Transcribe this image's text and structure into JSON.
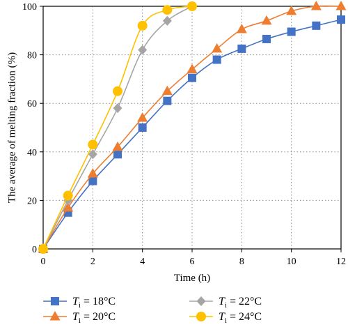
{
  "chart_data": {
    "type": "line",
    "xlabel": "Time (h)",
    "ylabel": "The average of melting fraction (%)",
    "xlim": [
      0,
      12
    ],
    "ylim": [
      0,
      100
    ],
    "xticks": [
      0,
      2,
      4,
      6,
      8,
      10,
      12
    ],
    "yticks": [
      0,
      20,
      40,
      60,
      80,
      100
    ],
    "grid": true,
    "legend_position": "bottom",
    "series": [
      {
        "name": "Ti = 18°C",
        "name_main": "T",
        "name_sub": "i",
        "name_rest": " = 18°C",
        "color": "#4472c4",
        "marker": "square",
        "x": [
          0,
          1,
          2,
          3,
          4,
          5,
          6,
          7,
          8,
          9,
          10,
          11,
          12
        ],
        "y": [
          0,
          15,
          28,
          39,
          50,
          61,
          70.5,
          78,
          82.5,
          86.5,
          89.5,
          92,
          94.5
        ]
      },
      {
        "name": "Ti = 20°C",
        "name_main": "T",
        "name_sub": "i",
        "name_rest": " = 20°C",
        "color": "#ed7d31",
        "marker": "triangle",
        "x": [
          0,
          1,
          2,
          3,
          4,
          5,
          6,
          7,
          8,
          9,
          10,
          11,
          12
        ],
        "y": [
          0,
          17,
          31,
          42,
          54,
          65,
          74,
          82.5,
          90.5,
          94,
          98,
          100,
          100
        ]
      },
      {
        "name": "Ti = 22°C",
        "name_main": "T",
        "name_sub": "i",
        "name_rest": " = 22°C",
        "color": "#a5a5a5",
        "marker": "diamond",
        "x": [
          0,
          1,
          2,
          3,
          4,
          5,
          6
        ],
        "y": [
          0,
          20,
          39,
          58,
          82,
          94,
          100
        ]
      },
      {
        "name": "Ti = 24°C",
        "name_main": "T",
        "name_sub": "i",
        "name_rest": " = 24°C",
        "color": "#ffc000",
        "marker": "circle",
        "x": [
          0,
          1,
          2,
          3,
          4,
          5,
          6
        ],
        "y": [
          0,
          22,
          43,
          65,
          92,
          98.5,
          100
        ]
      }
    ]
  }
}
